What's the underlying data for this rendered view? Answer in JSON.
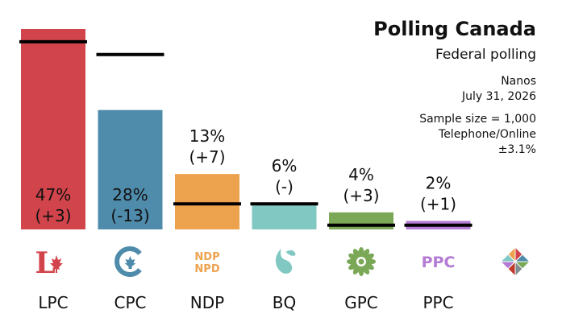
{
  "header": {
    "title": "Polling Canada",
    "subtitle": "Federal polling",
    "pollster": "Nanos",
    "date": "July 31, 2026",
    "sample": "Sample size = 1,000",
    "mode": "Telephone/Online",
    "margin": "±3.1%"
  },
  "chart_data": {
    "type": "bar",
    "categories": [
      "LPC",
      "CPC",
      "NDP",
      "BQ",
      "GPC",
      "PPC"
    ],
    "values": [
      47,
      28,
      13,
      6,
      4,
      2
    ],
    "value_labels": [
      "47%",
      "28%",
      "13%",
      "6%",
      "4%",
      "2%"
    ],
    "change_labels": [
      "(+3)",
      "(-13)",
      "(+7)",
      "(-)",
      "(+3)",
      "(+1)"
    ],
    "previous_values": [
      44,
      41,
      6,
      6,
      1,
      1
    ],
    "colors": [
      "#d2444b",
      "#4f8bab",
      "#eda24e",
      "#82c8c2",
      "#7aa856",
      "#b47bd4"
    ],
    "logo_texts": [
      "",
      "",
      "NDP\nNPD",
      "",
      "",
      "PPC"
    ],
    "ylim": [
      0,
      47
    ],
    "grid": false
  }
}
